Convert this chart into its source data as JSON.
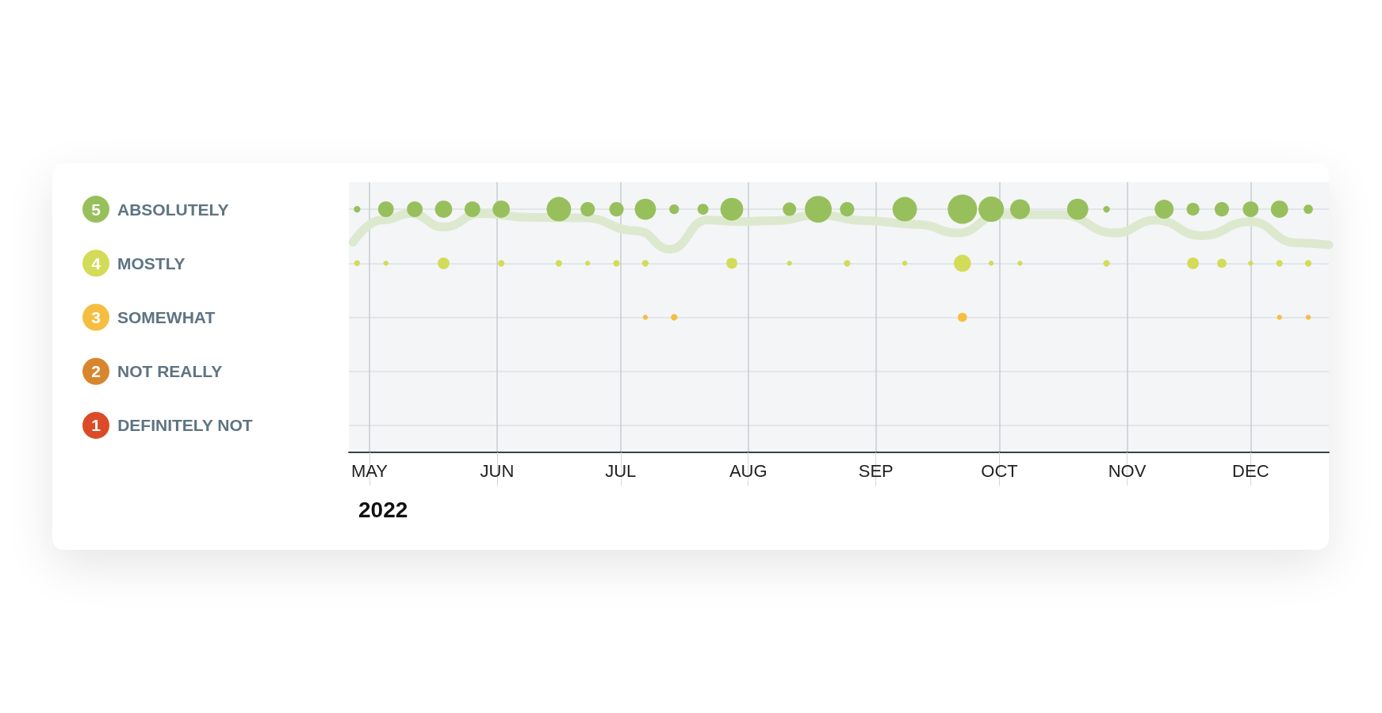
{
  "chart_data": {
    "type": "bubble",
    "xlabel": "2022",
    "x": [
      "2022-04-28",
      "2022-05-05",
      "2022-05-12",
      "2022-05-19",
      "2022-05-26",
      "2022-06-02",
      "2022-06-16",
      "2022-06-23",
      "2022-06-30",
      "2022-07-07",
      "2022-07-14",
      "2022-07-21",
      "2022-07-28",
      "2022-08-11",
      "2022-08-18",
      "2022-08-25",
      "2022-09-08",
      "2022-09-22",
      "2022-09-29",
      "2022-10-06",
      "2022-10-20",
      "2022-10-27",
      "2022-11-10",
      "2022-11-17",
      "2022-11-24",
      "2022-12-01",
      "2022-12-08",
      "2022-12-15"
    ],
    "series": [
      {
        "color": "#97c05c",
        "values": [
          5,
          5,
          5,
          5,
          5,
          5,
          5,
          5,
          5,
          5,
          5,
          5,
          5,
          5,
          5,
          5,
          5,
          5,
          5,
          5,
          5,
          5,
          5,
          5,
          5,
          5,
          5,
          5
        ],
        "sizes": [
          0.05,
          0.29,
          0.29,
          0.35,
          0.29,
          0.35,
          0.7,
          0.24,
          0.24,
          0.53,
          0.11,
          0.14,
          0.61,
          0.21,
          0.84,
          0.24,
          0.7,
          1,
          0.75,
          0.46,
          0.53,
          0.05,
          0.42,
          0.19,
          0.24,
          0.29,
          0.35,
          0.1
        ]
      },
      {
        "color": "#d2dc58",
        "values": [
          4,
          4,
          null,
          4,
          null,
          4,
          4,
          4,
          4,
          4,
          null,
          null,
          4,
          4,
          null,
          4,
          4,
          4,
          4,
          4,
          null,
          4,
          null,
          4,
          4,
          4,
          4,
          4
        ],
        "sizes": [
          0.04,
          0.03,
          null,
          0.16,
          null,
          0.05,
          0.05,
          0.03,
          0.05,
          0.05,
          null,
          null,
          0.14,
          0.03,
          null,
          0.05,
          0.03,
          0.34,
          0.03,
          0.03,
          null,
          0.05,
          null,
          0.16,
          0.1,
          0.03,
          0.05,
          0.05
        ]
      },
      {
        "color": "#f5be40",
        "values": [
          null,
          null,
          null,
          null,
          null,
          null,
          null,
          null,
          null,
          3,
          3,
          null,
          null,
          null,
          null,
          null,
          null,
          3,
          null,
          null,
          null,
          null,
          null,
          null,
          null,
          null,
          3,
          3
        ],
        "sizes": [
          null,
          null,
          null,
          null,
          null,
          null,
          null,
          null,
          null,
          0.03,
          0.05,
          null,
          null,
          null,
          null,
          null,
          null,
          0.1,
          null,
          null,
          null,
          null,
          null,
          null,
          null,
          null,
          0.03,
          0.03
        ]
      },
      {
        "color": "#d8862e",
        "values": [
          null,
          null,
          null,
          null,
          null,
          null,
          null,
          null,
          null,
          null,
          null,
          null,
          null,
          null,
          null,
          null,
          null,
          null,
          null,
          null,
          null,
          null,
          null,
          null,
          null,
          null,
          null,
          null
        ],
        "sizes": [
          null,
          null,
          null,
          null,
          null,
          null,
          null,
          null,
          null,
          null,
          null,
          null,
          null,
          null,
          null,
          null,
          null,
          null,
          null,
          null,
          null,
          null,
          null,
          null,
          null,
          null,
          null,
          null
        ]
      },
      {
        "color": "#dc4b28",
        "values": [
          null,
          null,
          null,
          null,
          null,
          null,
          null,
          null,
          null,
          null,
          null,
          null,
          null,
          null,
          null,
          null,
          null,
          null,
          null,
          null,
          null,
          null,
          null,
          null,
          null,
          null,
          null,
          null
        ],
        "sizes": [
          null,
          null,
          null,
          null,
          null,
          null,
          null,
          null,
          null,
          null,
          null,
          null,
          null,
          null,
          null,
          null,
          null,
          null,
          null,
          null,
          null,
          null,
          null,
          null,
          null,
          null,
          null,
          null
        ]
      },
      {
        "type": "line",
        "marker": "none",
        "color": "#dde9cf",
        "x": [
          "2022-04-27",
          "2022-05-04",
          "2022-05-11",
          "2022-05-19",
          "2022-05-28",
          "2022-06-09",
          "2022-06-22",
          "2022-07-05",
          "2022-07-13",
          "2022-07-22",
          "2022-07-30",
          "2022-08-08",
          "2022-08-18",
          "2022-08-29",
          "2022-09-11",
          "2022-09-21",
          "2022-10-01",
          "2022-10-16",
          "2022-10-29",
          "2022-11-08",
          "2022-11-19",
          "2022-12-01",
          "2022-12-12",
          "2022-12-20"
        ],
        "values": [
          4.39,
          4.8,
          4.92,
          4.67,
          4.92,
          4.85,
          4.84,
          4.6,
          4.26,
          4.8,
          4.77,
          4.79,
          4.9,
          4.79,
          4.72,
          4.56,
          4.9,
          4.9,
          4.56,
          4.8,
          4.51,
          4.77,
          4.38,
          4.34
        ]
      }
    ],
    "xlim": [
      "2022-04-26",
      "2022-12-20"
    ],
    "xticks": [
      {
        "value": "2022-05-01",
        "label": "MAY"
      },
      {
        "value": "2022-06-01",
        "label": "JUN"
      },
      {
        "value": "2022-07-01",
        "label": "JUL"
      },
      {
        "value": "2022-08-01",
        "label": "AUG"
      },
      {
        "value": "2022-09-01",
        "label": "SEP"
      },
      {
        "value": "2022-10-01",
        "label": "OCT"
      },
      {
        "value": "2022-11-01",
        "label": "NOV"
      },
      {
        "value": "2022-12-01",
        "label": "DEC"
      }
    ],
    "ylim": [
      0.5,
      5.5
    ],
    "yticks": [
      {
        "value": 5,
        "label": "5 ABSOLUTELY"
      },
      {
        "value": 4,
        "label": "4 MOSTLY"
      },
      {
        "value": 3,
        "label": "3 SOMEWHAT"
      },
      {
        "value": 2,
        "label": "2 NOT REALLY"
      },
      {
        "value": 1,
        "label": "1 DEFINITELY NOT"
      }
    ],
    "marker": "circle",
    "grid": true
  }
}
